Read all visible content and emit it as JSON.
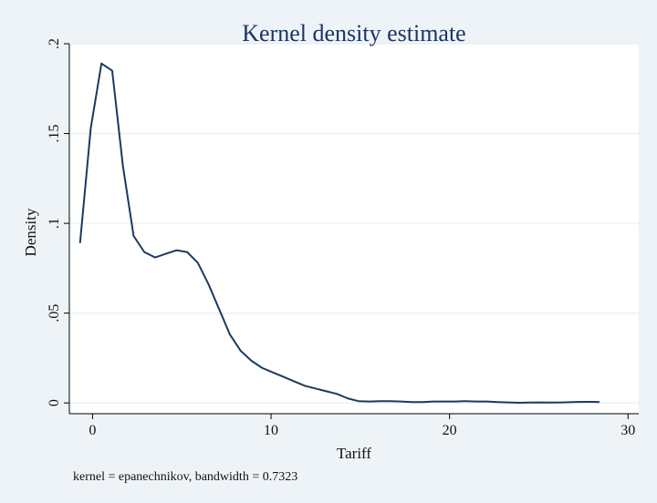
{
  "chart_data": {
    "type": "line",
    "title": "Kernel density estimate",
    "xlabel": "Tariff",
    "ylabel": "Density",
    "note": "kernel = epanechnikov, bandwidth = 0.7323",
    "xlim": [
      -1.3,
      30.6
    ],
    "ylim": [
      -0.006,
      0.2
    ],
    "xticks": [
      0,
      10,
      20,
      30
    ],
    "xtick_labels": [
      "0",
      "10",
      "20",
      "30"
    ],
    "yticks": [
      0,
      0.05,
      0.1,
      0.15,
      0.2
    ],
    "ytick_labels": [
      "0",
      ".05",
      ".1",
      ".15",
      ".2"
    ],
    "grid": true,
    "colors": {
      "line": "#1c3a5e",
      "background": "#eef3f7",
      "plot_bg": "#ffffff",
      "grid": "#e8edf2",
      "title": "#1a3566"
    },
    "series": [
      {
        "name": "Density",
        "x": [
          -0.7,
          -0.1,
          0.5,
          1.1,
          1.7,
          2.3,
          2.9,
          3.5,
          4.1,
          4.7,
          5.3,
          5.9,
          6.5,
          7.1,
          7.7,
          8.3,
          8.9,
          9.5,
          10.1,
          10.7,
          11.3,
          11.9,
          12.5,
          13.1,
          13.7,
          14.3,
          14.9,
          15.5,
          16.1,
          16.7,
          17.3,
          17.9,
          18.5,
          19.1,
          19.7,
          20.3,
          20.9,
          21.5,
          22.1,
          22.7,
          23.3,
          23.9,
          24.5,
          25.1,
          25.7,
          26.3,
          26.9,
          27.5,
          28.1,
          28.4
        ],
        "y": [
          0.089,
          0.153,
          0.189,
          0.185,
          0.132,
          0.093,
          0.084,
          0.081,
          0.083,
          0.085,
          0.084,
          0.078,
          0.066,
          0.052,
          0.038,
          0.029,
          0.0235,
          0.0195,
          0.017,
          0.0145,
          0.012,
          0.0095,
          0.008,
          0.0065,
          0.005,
          0.0025,
          0.001,
          0.0008,
          0.001,
          0.001,
          0.0008,
          0.0005,
          0.0005,
          0.0008,
          0.0008,
          0.0008,
          0.001,
          0.0008,
          0.0008,
          0.0005,
          0.0003,
          0.0001,
          0.0002,
          0.0003,
          0.0002,
          0.0003,
          0.0005,
          0.0006,
          0.0006,
          0.0005
        ]
      }
    ]
  }
}
